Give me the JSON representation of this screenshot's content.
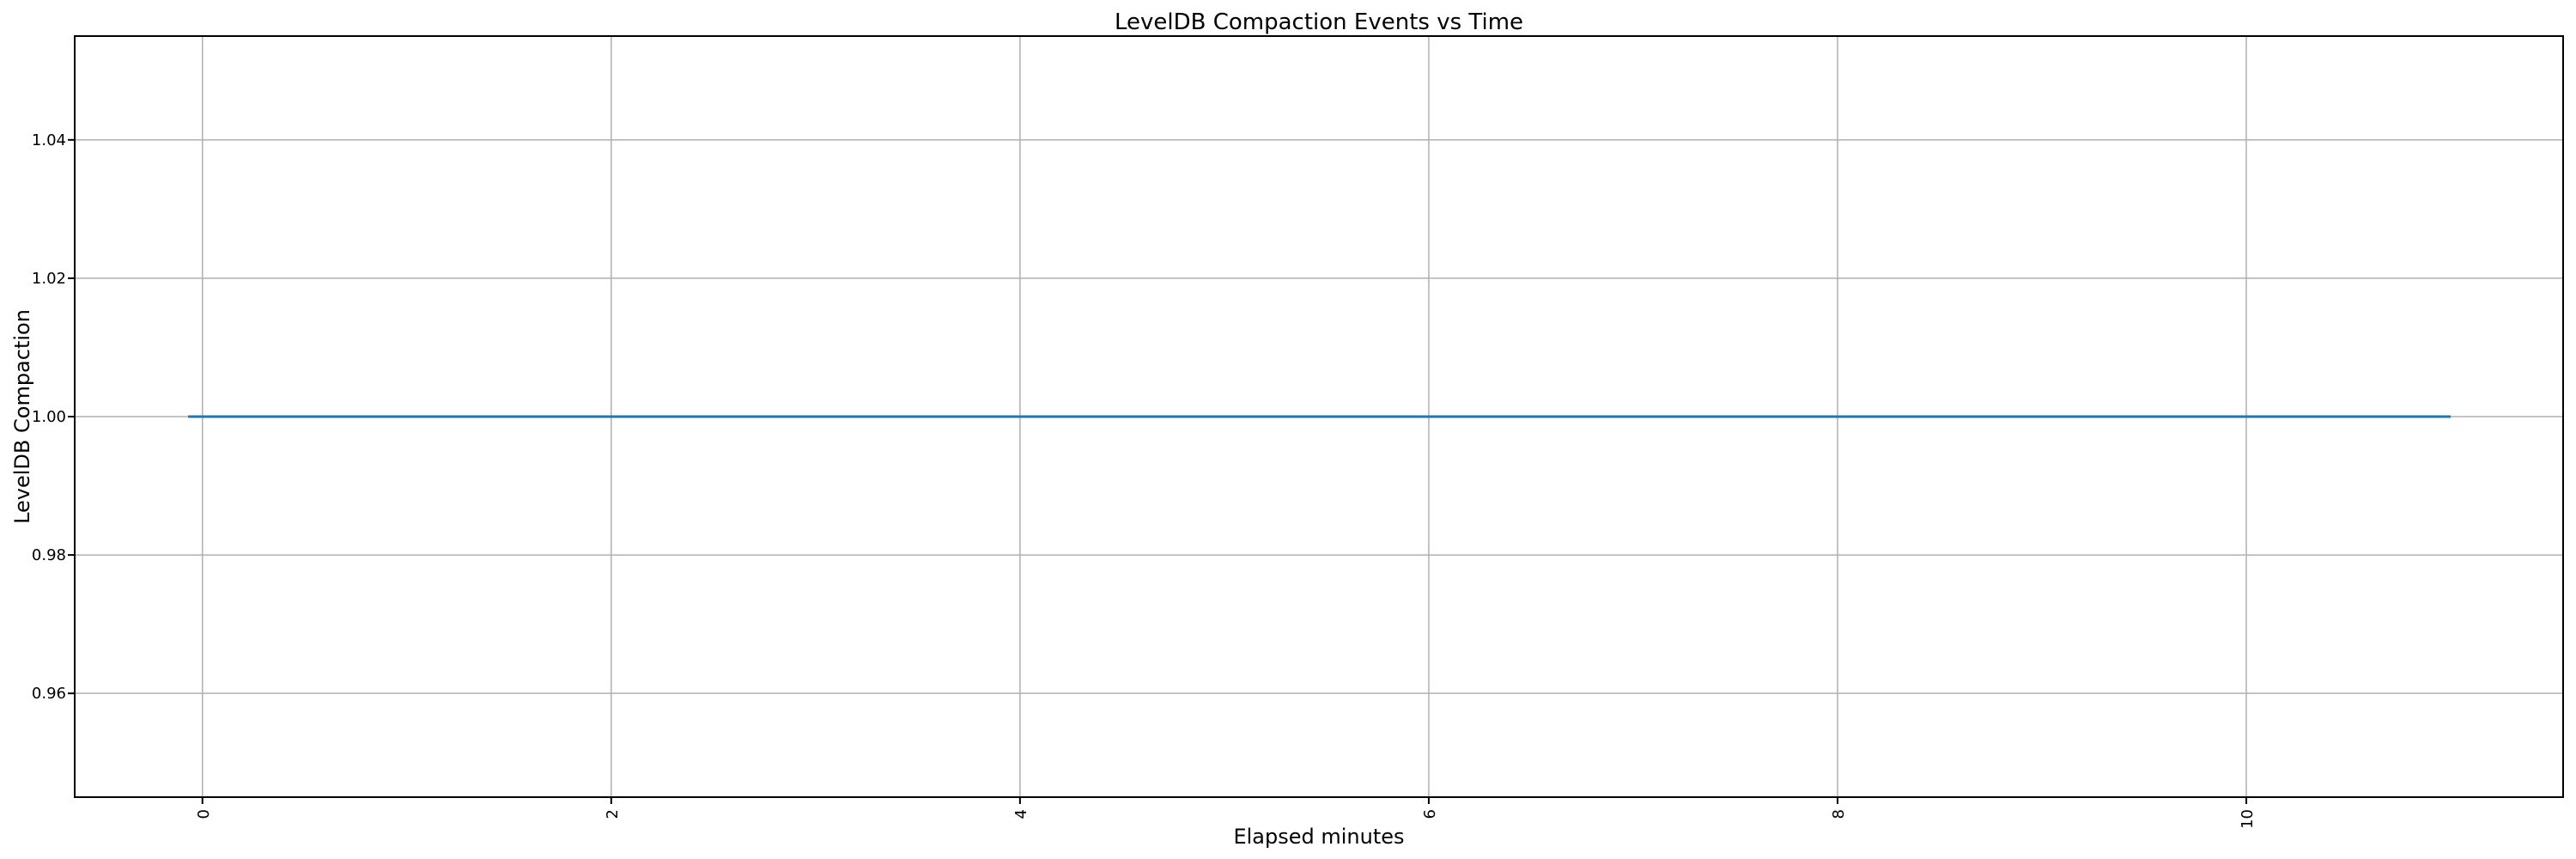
{
  "figure": {
    "background": "#ffffff"
  },
  "chart_data": {
    "type": "line",
    "title": "LevelDB Compaction Events vs Time",
    "xlabel": "Elapsed minutes",
    "ylabel": "LevelDB Compaction",
    "xlim": [
      -0.625,
      11.55
    ],
    "ylim": [
      0.945,
      1.055
    ],
    "x_ticks": [
      0,
      2,
      4,
      6,
      8,
      10
    ],
    "x_tick_labels": [
      "0",
      "2",
      "4",
      "6",
      "8",
      "10"
    ],
    "x_tick_rotation": 90,
    "y_ticks": [
      0.96,
      0.98,
      1.0,
      1.02,
      1.04
    ],
    "y_tick_labels": [
      "0.96",
      "0.98",
      "1.00",
      "1.02",
      "1.04"
    ],
    "grid": true,
    "legend": false,
    "series": [
      {
        "name": "LevelDB Compaction",
        "color": "#1f77b4",
        "x": [
          -0.07,
          11.0
        ],
        "y": [
          1.0,
          1.0
        ]
      }
    ]
  },
  "style": {
    "line_color": "#1f77b4",
    "grid_color": "#b0b0b0",
    "spine_color": "#000000",
    "tick_color": "#000000",
    "text_color": "#000000"
  }
}
